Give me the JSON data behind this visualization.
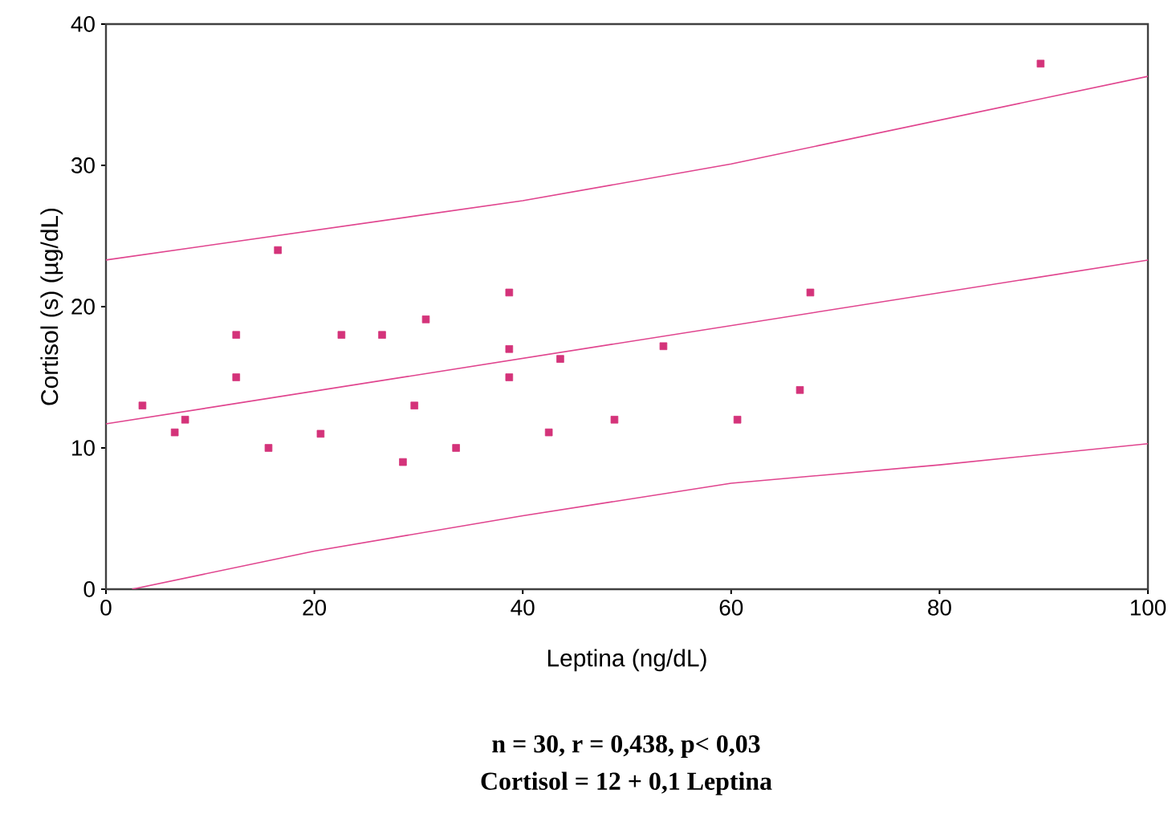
{
  "chart_data": {
    "type": "scatter",
    "xlabel": "Leptina (ng/dL)",
    "ylabel": "Cortisol (s) (µg/dL)",
    "xlim": [
      0,
      100
    ],
    "ylim": [
      0,
      40
    ],
    "xticks": [
      0,
      20,
      40,
      60,
      80,
      100
    ],
    "yticks": [
      0,
      10,
      20,
      30,
      40
    ],
    "series": [
      {
        "marker": "square",
        "color": "#d4337a",
        "x": [
          3.5,
          6.6,
          7.6,
          12.5,
          12.5,
          15.6,
          16.5,
          20.6,
          22.6,
          26.5,
          28.5,
          29.6,
          30.7,
          33.6,
          38.7,
          38.7,
          38.7,
          42.5,
          43.6,
          48.8,
          53.5,
          60.6,
          66.6,
          67.6,
          89.7
        ],
        "values": [
          13,
          11.1,
          12,
          18,
          15,
          10,
          24,
          11,
          18,
          18,
          9,
          13,
          19.1,
          10,
          21,
          17,
          15,
          11.1,
          16.3,
          12,
          17.2,
          12,
          14.1,
          21,
          37.2
        ]
      },
      {
        "type": "line",
        "marker": "none",
        "line_style": "solid",
        "color": "#e0448e",
        "x": [
          0,
          100
        ],
        "values": [
          11.7,
          23.3
        ]
      },
      {
        "type": "line",
        "marker": "none",
        "line_style": "solid",
        "color": "#e0448e",
        "x": [
          0,
          20,
          40,
          60,
          80,
          100
        ],
        "values": [
          23.3,
          25.4,
          27.5,
          30.1,
          33.2,
          36.3
        ]
      },
      {
        "type": "line",
        "marker": "none",
        "line_style": "solid",
        "color": "#e0448e",
        "x": [
          2.5,
          20,
          40,
          60,
          80,
          100
        ],
        "values": [
          0,
          2.7,
          5.2,
          7.5,
          8.8,
          10.3
        ]
      }
    ],
    "annotations": [
      "n = 30, r = 0,438, p< 0,03",
      "Cortisol = 12 + 0,1 Leptina"
    ]
  }
}
